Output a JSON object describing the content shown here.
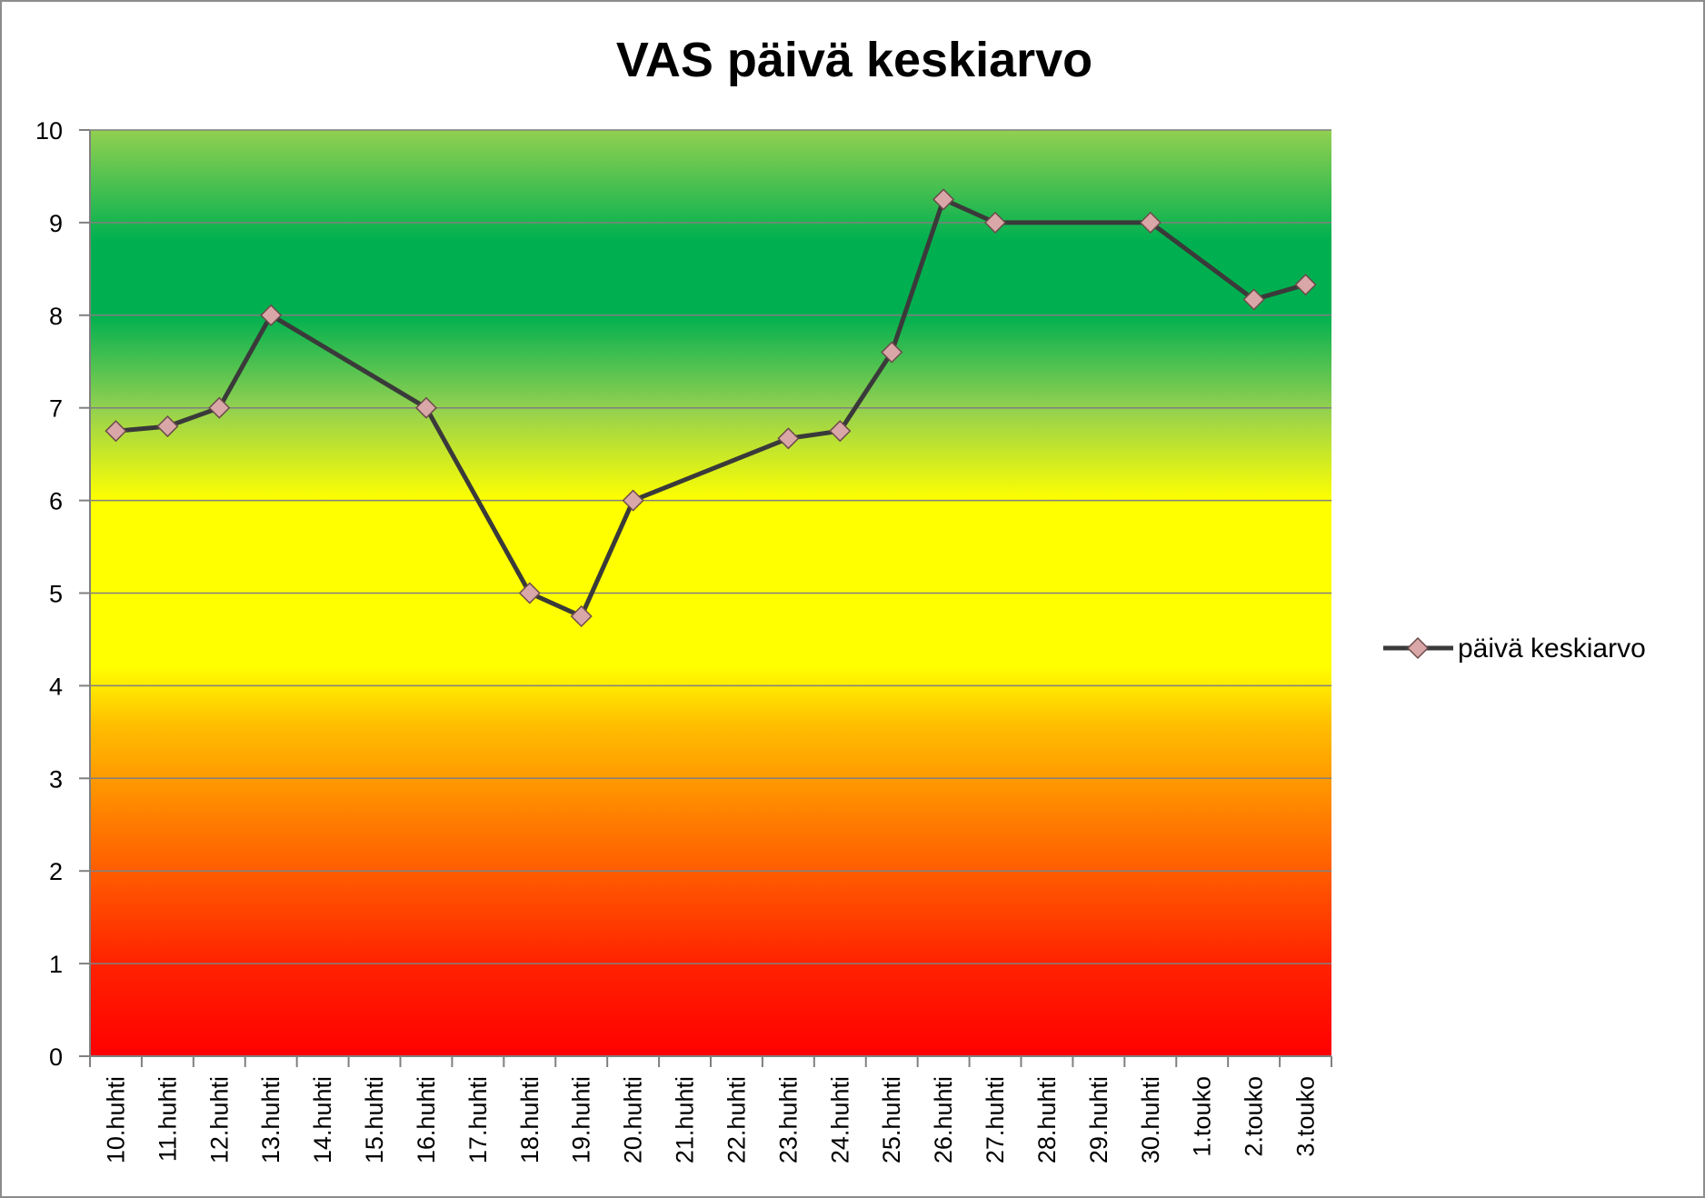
{
  "chart_data": {
    "type": "line",
    "title": "VAS päivä keskiarvo",
    "xlabel": "",
    "ylabel": "",
    "ylim": [
      0,
      10
    ],
    "yticks": [
      0,
      1,
      2,
      3,
      4,
      5,
      6,
      7,
      8,
      9,
      10
    ],
    "categories": [
      "10.huhti",
      "11.huhti",
      "12.huhti",
      "13.huhti",
      "14.huhti",
      "15.huhti",
      "16.huhti",
      "17.huhti",
      "18.huhti",
      "19.huhti",
      "20.huhti",
      "21.huhti",
      "22.huhti",
      "23.huhti",
      "24.huhti",
      "25.huhti",
      "26.huhti",
      "27.huhti",
      "28.huhti",
      "29.huhti",
      "30.huhti",
      "1.touko",
      "2.touko",
      "3.touko"
    ],
    "series": [
      {
        "name": "päivä keskiarvo",
        "values": [
          6.75,
          6.8,
          7.0,
          8.0,
          null,
          null,
          7.0,
          null,
          5.0,
          4.75,
          6.0,
          null,
          null,
          6.67,
          6.75,
          7.6,
          9.25,
          9.0,
          null,
          null,
          9.0,
          null,
          8.17,
          8.33
        ],
        "line_color": "#3a3a3a",
        "marker": "diamond",
        "marker_color": "#d9a7a7"
      }
    ],
    "grid": true,
    "legend_position": "right",
    "background": "vertical gradient: red (0) → orange → yellow (4–6) → green (7–9.5) → light green (10)"
  }
}
